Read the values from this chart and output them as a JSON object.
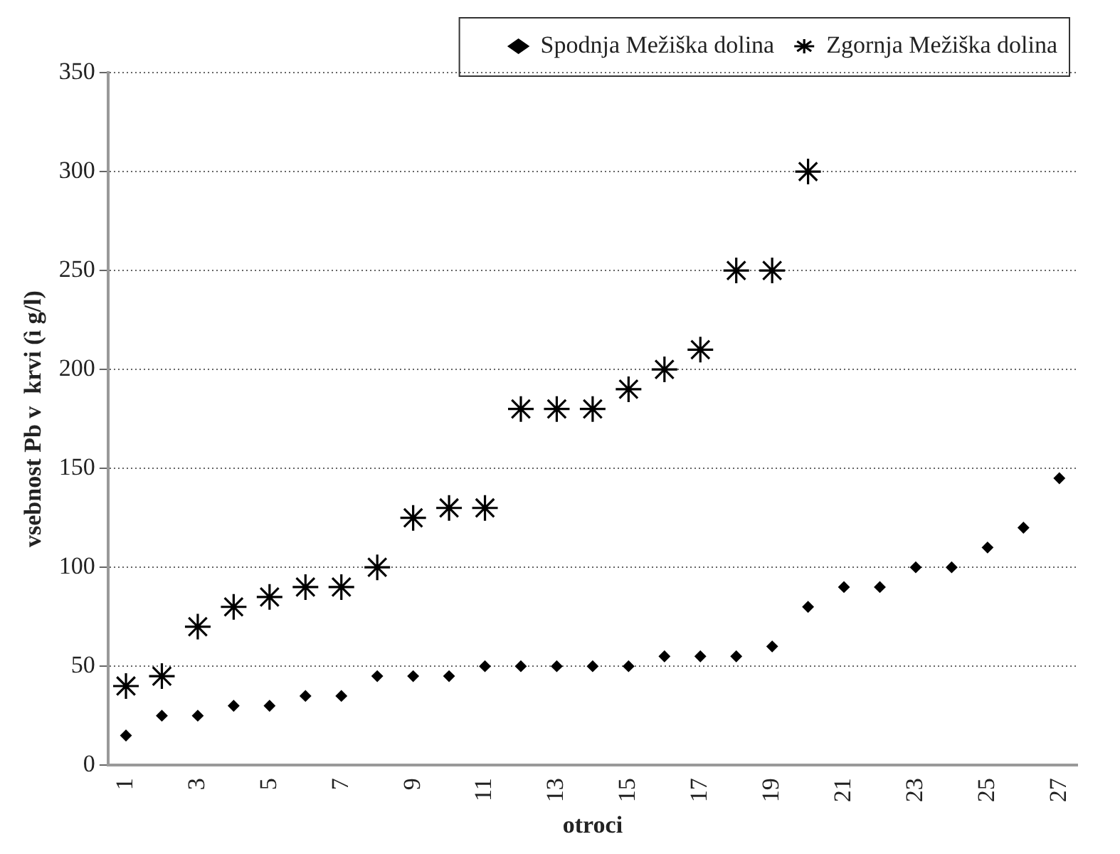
{
  "chart_data": {
    "type": "scatter",
    "xlabel": "otroci",
    "ylabel": "vsebnost Pb v  krvi (ì g/l)",
    "categories": [
      "1",
      null,
      "3",
      null,
      "5",
      null,
      "7",
      null,
      "9",
      null,
      "11",
      null,
      "13",
      null,
      "15",
      null,
      "17",
      null,
      "19",
      null,
      "21",
      null,
      "23",
      null,
      "25",
      null,
      "27"
    ],
    "series": [
      {
        "name": "Spodnja Mežiška dolina",
        "color": "#000000",
        "marker": "diamond",
        "values": [
          15,
          25,
          25,
          30,
          30,
          35,
          35,
          45,
          45,
          45,
          50,
          50,
          50,
          50,
          50,
          55,
          55,
          55,
          60,
          80,
          90,
          90,
          100,
          100,
          110,
          120,
          145
        ]
      },
      {
        "name": "Zgornja Mežiška dolina",
        "color": "#000000",
        "marker": "cross",
        "values": [
          40,
          45,
          70,
          80,
          85,
          90,
          90,
          100,
          125,
          130,
          130,
          180,
          180,
          180,
          190,
          200,
          210,
          250,
          250,
          300,
          null,
          null,
          null,
          null,
          null,
          null,
          null
        ]
      }
    ],
    "ylim": [
      0,
      350
    ],
    "yticks": [
      0,
      50,
      100,
      150,
      200,
      250,
      300,
      350
    ],
    "grid": "y",
    "legend": "top right"
  }
}
